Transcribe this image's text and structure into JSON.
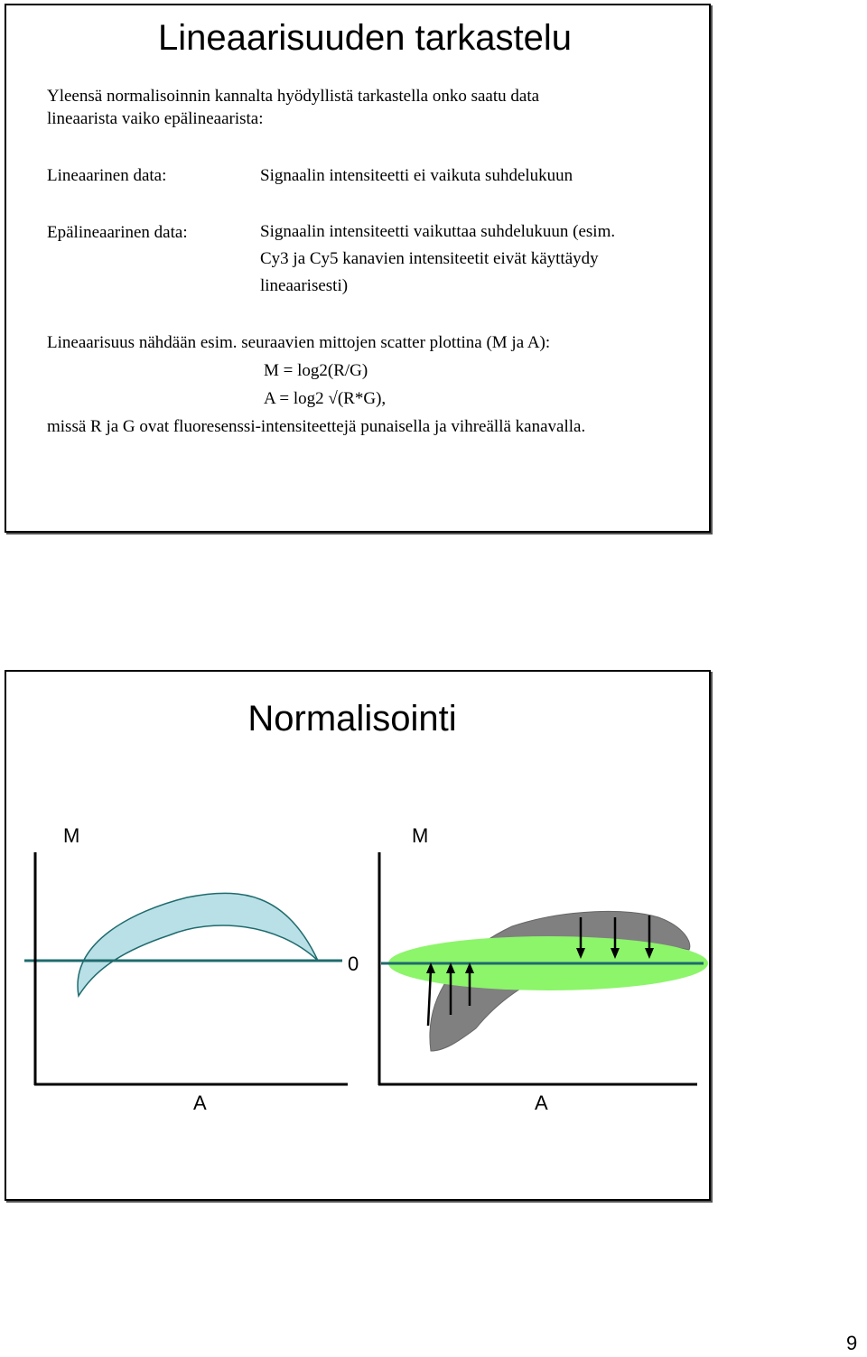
{
  "slide1": {
    "title": "Lineaarisuuden tarkastelu",
    "intro_lines": [
      "Yleensä normalisoinnin kannalta hyödyllistä tarkastella onko saatu data",
      "lineaarista vaiko epälineaarista:"
    ],
    "linear_label": "Lineaarinen data:",
    "linear_desc": "Signaalin intensiteetti ei vaikuta suhdelukuun",
    "nonlinear_label": "Epälineaarinen data:",
    "nonlinear_desc_lines": [
      "Signaalin intensiteetti vaikuttaa suhdelukuun (esim.",
      "Cy3 ja Cy5 kanavien intensiteetit eivät käyttäydy",
      "lineaarisesti)"
    ],
    "scatter_intro": "Lineaarisuus nähdään esim. seuraavien mittojen scatter plottina (M ja A):",
    "formula_m": "M = log2(R/G)",
    "formula_a": "A = log2 √(R*G),",
    "explanation": "missä R ja G ovat fluoresenssi-intensiteettejä punaisella ja vihreällä kanavalla."
  },
  "slide2": {
    "title": "Normalisointi",
    "left_plot": {
      "y_label": "M",
      "x_label": "A"
    },
    "right_plot": {
      "y_label": "M",
      "x_label": "A",
      "zero_label": "0"
    },
    "colors": {
      "light_blue_fill": "#b9e0e6",
      "teal_line": "#1f6b6e",
      "green_fill": "#8cf56a",
      "gray_fill": "#808080"
    }
  },
  "page_number": "9"
}
